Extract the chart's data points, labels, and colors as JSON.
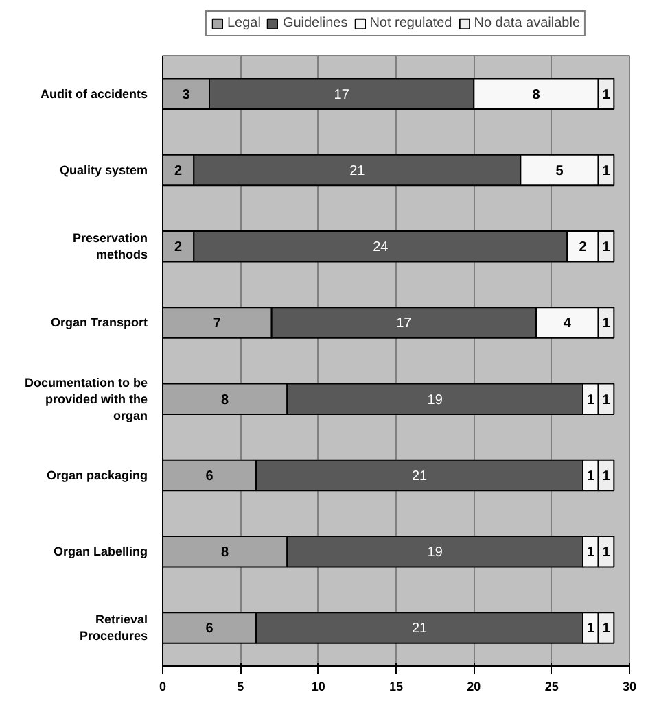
{
  "chart_data": {
    "type": "bar",
    "orientation": "horizontal",
    "stacked": true,
    "categories": [
      "Audit of accidents",
      "Quality system",
      "Preservation methods",
      "Organ Transport",
      "Documentation to be provided with the organ",
      "Organ packaging",
      "Organ Labelling",
      "Retrieval Procedures"
    ],
    "series": [
      {
        "name": "Legal",
        "color": "#a6a6a6",
        "values": [
          3,
          2,
          2,
          7,
          8,
          6,
          8,
          6
        ]
      },
      {
        "name": "Guidelines",
        "color": "#595959",
        "values": [
          17,
          21,
          24,
          17,
          19,
          21,
          19,
          21
        ]
      },
      {
        "name": "Not regulated",
        "color": "#f8f8f8",
        "values": [
          8,
          5,
          2,
          4,
          1,
          1,
          1,
          1
        ]
      },
      {
        "name": "No data available",
        "color": "#eeeeee",
        "values": [
          1,
          1,
          1,
          1,
          1,
          1,
          1,
          1
        ]
      }
    ],
    "xlim": [
      0,
      30
    ],
    "xticks": [
      0,
      5,
      10,
      15,
      20,
      25,
      30
    ],
    "grid": "x",
    "legend": "top",
    "data_labels": true
  }
}
